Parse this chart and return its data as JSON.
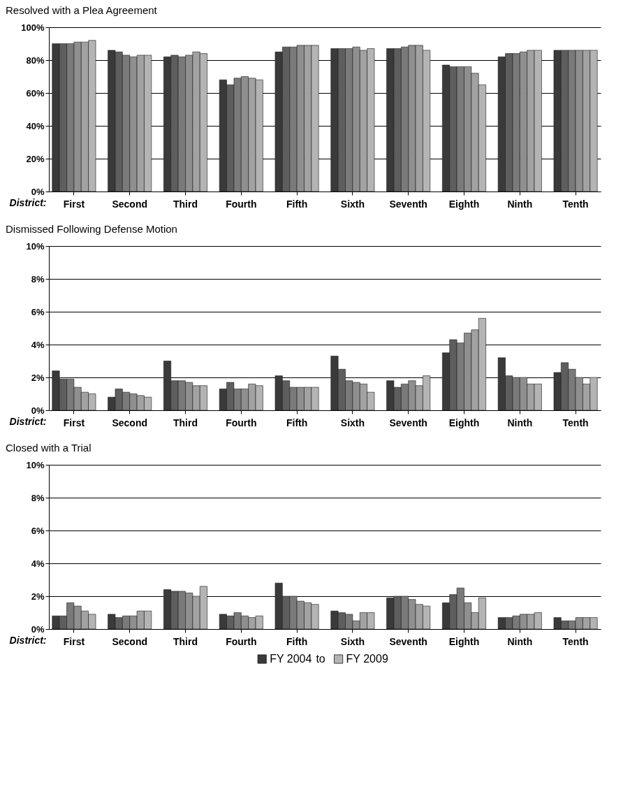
{
  "chart_data": [
    {
      "type": "bar",
      "title": "Resolved with a Plea Agreement",
      "xlabel": "District:",
      "categories": [
        "First",
        "Second",
        "Third",
        "Fourth",
        "Fifth",
        "Sixth",
        "Seventh",
        "Eighth",
        "Ninth",
        "Tenth"
      ],
      "series": [
        {
          "color": "#3a3a3a",
          "values": [
            90,
            86,
            82,
            68,
            85,
            87,
            87,
            77,
            82,
            86
          ]
        },
        {
          "color": "#5e5e5e",
          "values": [
            90,
            85,
            83,
            65,
            88,
            87,
            87,
            76,
            84,
            86
          ]
        },
        {
          "color": "#7a7a7a",
          "values": [
            90,
            83,
            82,
            69,
            88,
            87,
            88,
            76,
            84,
            86
          ]
        },
        {
          "color": "#8f8f8f",
          "values": [
            91,
            82,
            83,
            70,
            89,
            88,
            89,
            76,
            85,
            86
          ]
        },
        {
          "color": "#a2a2a2",
          "values": [
            91,
            83,
            85,
            69,
            89,
            86,
            89,
            72,
            86,
            86
          ]
        },
        {
          "color": "#b4b4b4",
          "values": [
            92,
            83,
            84,
            68,
            89,
            87,
            86,
            65,
            86,
            86
          ]
        }
      ],
      "ylim": [
        0,
        100
      ],
      "yticks": [
        {
          "value": 0,
          "label": "0%"
        },
        {
          "value": 20,
          "label": "20%"
        },
        {
          "value": 40,
          "label": "40%"
        },
        {
          "value": 60,
          "label": "60%"
        },
        {
          "value": 80,
          "label": "80%"
        },
        {
          "value": 100,
          "label": "100%"
        }
      ],
      "grid": "y"
    },
    {
      "type": "bar",
      "title": "Dismissed Following Defense Motion",
      "xlabel": "District:",
      "categories": [
        "First",
        "Second",
        "Third",
        "Fourth",
        "Fifth",
        "Sixth",
        "Seventh",
        "Eighth",
        "Ninth",
        "Tenth"
      ],
      "series": [
        {
          "color": "#3a3a3a",
          "values": [
            2.4,
            0.8,
            3.0,
            1.3,
            2.1,
            3.3,
            1.8,
            3.5,
            3.2,
            2.3
          ]
        },
        {
          "color": "#5e5e5e",
          "values": [
            1.9,
            1.3,
            1.8,
            1.7,
            1.8,
            2.5,
            1.4,
            4.3,
            2.1,
            2.9
          ]
        },
        {
          "color": "#7a7a7a",
          "values": [
            1.9,
            1.1,
            1.8,
            1.3,
            1.4,
            1.8,
            1.6,
            4.1,
            2.0,
            2.5
          ]
        },
        {
          "color": "#8f8f8f",
          "values": [
            1.4,
            1.0,
            1.7,
            1.3,
            1.4,
            1.7,
            1.8,
            4.7,
            2.0,
            2.0
          ]
        },
        {
          "color": "#a2a2a2",
          "values": [
            1.1,
            0.9,
            1.5,
            1.6,
            1.4,
            1.6,
            1.5,
            4.9,
            1.6,
            1.6
          ]
        },
        {
          "color": "#b4b4b4",
          "values": [
            1.0,
            0.8,
            1.5,
            1.5,
            1.4,
            1.1,
            2.1,
            5.6,
            1.6,
            2.0
          ]
        }
      ],
      "ylim": [
        0,
        10
      ],
      "yticks": [
        {
          "value": 0,
          "label": "0%"
        },
        {
          "value": 2,
          "label": "2%"
        },
        {
          "value": 4,
          "label": "4%"
        },
        {
          "value": 6,
          "label": "6%"
        },
        {
          "value": 8,
          "label": "8%"
        },
        {
          "value": 10,
          "label": "10%"
        }
      ],
      "grid": "y"
    },
    {
      "type": "bar",
      "title": "Closed with a Trial",
      "xlabel": "District:",
      "categories": [
        "First",
        "Second",
        "Third",
        "Fourth",
        "Fifth",
        "Sixth",
        "Seventh",
        "Eighth",
        "Ninth",
        "Tenth"
      ],
      "series": [
        {
          "name": "FY 2004",
          "color": "#3a3a3a",
          "values": [
            0.8,
            0.9,
            2.4,
            0.9,
            2.8,
            1.1,
            1.9,
            1.6,
            0.7,
            0.7
          ]
        },
        {
          "color": "#5e5e5e",
          "values": [
            0.8,
            0.7,
            2.3,
            0.8,
            2.0,
            1.0,
            2.0,
            2.1,
            0.7,
            0.5
          ]
        },
        {
          "color": "#7a7a7a",
          "values": [
            1.6,
            0.8,
            2.3,
            1.0,
            2.0,
            0.9,
            2.0,
            2.5,
            0.8,
            0.5
          ]
        },
        {
          "color": "#8f8f8f",
          "values": [
            1.4,
            0.8,
            2.2,
            0.8,
            1.7,
            0.5,
            1.8,
            1.6,
            0.9,
            0.7
          ]
        },
        {
          "color": "#a2a2a2",
          "values": [
            1.1,
            1.1,
            2.0,
            0.7,
            1.6,
            1.0,
            1.5,
            1.0,
            0.9,
            0.7
          ]
        },
        {
          "name": "FY 2009",
          "color": "#b4b4b4",
          "values": [
            0.9,
            1.1,
            2.6,
            0.8,
            1.5,
            1.0,
            1.4,
            1.9,
            1.0,
            0.7
          ]
        }
      ],
      "ylim": [
        0,
        10
      ],
      "yticks": [
        {
          "value": 0,
          "label": "0%"
        },
        {
          "value": 2,
          "label": "2%"
        },
        {
          "value": 4,
          "label": "4%"
        },
        {
          "value": 6,
          "label": "6%"
        },
        {
          "value": 8,
          "label": "8%"
        },
        {
          "value": 10,
          "label": "10%"
        }
      ],
      "grid": "y",
      "legend": "bottom",
      "annotations": [
        "to"
      ]
    }
  ]
}
